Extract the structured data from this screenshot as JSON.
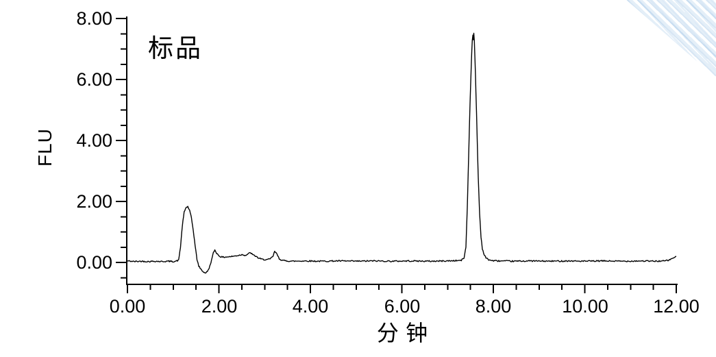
{
  "page": {
    "background_color": "#ffffff"
  },
  "decoration": {
    "name": "corner-diagonal-stripes",
    "position": "top-right",
    "colors": [
      "#96bee2",
      "#d6e6f5",
      "#ffffff"
    ]
  },
  "chart_data": {
    "type": "line",
    "title": "",
    "annotation": "标品",
    "xlabel": "分 钟",
    "ylabel": "FLU",
    "x_range": [
      0,
      12
    ],
    "y_range_labeled": [
      0,
      8
    ],
    "x_major_ticks": [
      0,
      2,
      4,
      6,
      8,
      10,
      12
    ],
    "x_tick_labels": [
      "0.00",
      "2.00",
      "4.00",
      "6.00",
      "8.00",
      "10.00",
      "12.00"
    ],
    "x_minor_tick_step": 0.5,
    "y_major_ticks": [
      0,
      2,
      4,
      6,
      8
    ],
    "y_tick_labels": [
      "0.00",
      "2.00",
      "4.00",
      "6.00",
      "8.00"
    ],
    "y_minor_tick_step": 0.5,
    "y_minor_tick_min": -0.5,
    "grid": false,
    "legend": false,
    "line_color": "#000000",
    "axis_color": "#000000",
    "background_color": "#ffffff",
    "noise_amplitude_flu": 0.022,
    "peaks": [
      {
        "time_min": 1.3,
        "height_flu": 1.8
      },
      {
        "time_min": 1.9,
        "height_flu": 0.4
      },
      {
        "time_min": 3.2,
        "height_flu": 0.37
      },
      {
        "time_min": 7.57,
        "height_flu": 7.5
      }
    ],
    "points": [
      [
        0.0,
        0.05
      ],
      [
        0.15,
        0.03
      ],
      [
        0.3,
        0.04
      ],
      [
        0.45,
        0.03
      ],
      [
        0.6,
        0.04
      ],
      [
        0.75,
        0.03
      ],
      [
        0.9,
        0.04
      ],
      [
        1.0,
        0.03
      ],
      [
        1.08,
        0.05
      ],
      [
        1.12,
        0.08
      ],
      [
        1.16,
        0.5
      ],
      [
        1.2,
        1.2
      ],
      [
        1.24,
        1.65
      ],
      [
        1.28,
        1.8
      ],
      [
        1.32,
        1.83
      ],
      [
        1.36,
        1.7
      ],
      [
        1.4,
        1.45
      ],
      [
        1.44,
        1.05
      ],
      [
        1.48,
        0.55
      ],
      [
        1.52,
        0.1
      ],
      [
        1.56,
        -0.12
      ],
      [
        1.62,
        -0.25
      ],
      [
        1.68,
        -0.33
      ],
      [
        1.72,
        -0.34
      ],
      [
        1.76,
        -0.27
      ],
      [
        1.8,
        -0.13
      ],
      [
        1.84,
        0.08
      ],
      [
        1.88,
        0.32
      ],
      [
        1.91,
        0.41
      ],
      [
        1.94,
        0.33
      ],
      [
        1.98,
        0.25
      ],
      [
        2.02,
        0.2
      ],
      [
        2.08,
        0.17
      ],
      [
        2.15,
        0.18
      ],
      [
        2.25,
        0.19
      ],
      [
        2.35,
        0.21
      ],
      [
        2.45,
        0.24
      ],
      [
        2.52,
        0.26
      ],
      [
        2.58,
        0.23
      ],
      [
        2.64,
        0.28
      ],
      [
        2.69,
        0.32
      ],
      [
        2.75,
        0.24
      ],
      [
        2.8,
        0.21
      ],
      [
        2.87,
        0.14
      ],
      [
        2.95,
        0.1
      ],
      [
        3.05,
        0.09
      ],
      [
        3.12,
        0.11
      ],
      [
        3.18,
        0.2
      ],
      [
        3.22,
        0.36
      ],
      [
        3.27,
        0.27
      ],
      [
        3.32,
        0.12
      ],
      [
        3.4,
        0.06
      ],
      [
        3.6,
        0.04
      ],
      [
        3.9,
        0.05
      ],
      [
        4.2,
        0.04
      ],
      [
        4.6,
        0.05
      ],
      [
        5.0,
        0.04
      ],
      [
        5.4,
        0.05
      ],
      [
        5.8,
        0.04
      ],
      [
        6.2,
        0.05
      ],
      [
        6.6,
        0.04
      ],
      [
        7.0,
        0.05
      ],
      [
        7.2,
        0.06
      ],
      [
        7.3,
        0.07
      ],
      [
        7.36,
        0.15
      ],
      [
        7.4,
        0.5
      ],
      [
        7.43,
        1.8
      ],
      [
        7.46,
        3.5
      ],
      [
        7.49,
        5.2
      ],
      [
        7.52,
        6.6
      ],
      [
        7.54,
        7.3
      ],
      [
        7.553,
        7.45
      ],
      [
        7.563,
        7.32
      ],
      [
        7.573,
        7.5
      ],
      [
        7.585,
        7.25
      ],
      [
        7.6,
        6.6
      ],
      [
        7.62,
        5.6
      ],
      [
        7.645,
        4.2
      ],
      [
        7.67,
        2.8
      ],
      [
        7.7,
        1.6
      ],
      [
        7.73,
        0.85
      ],
      [
        7.76,
        0.45
      ],
      [
        7.8,
        0.25
      ],
      [
        7.84,
        0.15
      ],
      [
        7.9,
        0.09
      ],
      [
        7.97,
        0.06
      ],
      [
        8.1,
        0.05
      ],
      [
        8.4,
        0.04
      ],
      [
        8.8,
        0.05
      ],
      [
        9.2,
        0.04
      ],
      [
        9.6,
        0.05
      ],
      [
        10.0,
        0.04
      ],
      [
        10.4,
        0.05
      ],
      [
        10.8,
        0.04
      ],
      [
        11.2,
        0.05
      ],
      [
        11.5,
        0.04
      ],
      [
        11.75,
        0.05
      ],
      [
        11.85,
        0.08
      ],
      [
        11.92,
        0.14
      ],
      [
        12.0,
        0.2
      ]
    ]
  }
}
